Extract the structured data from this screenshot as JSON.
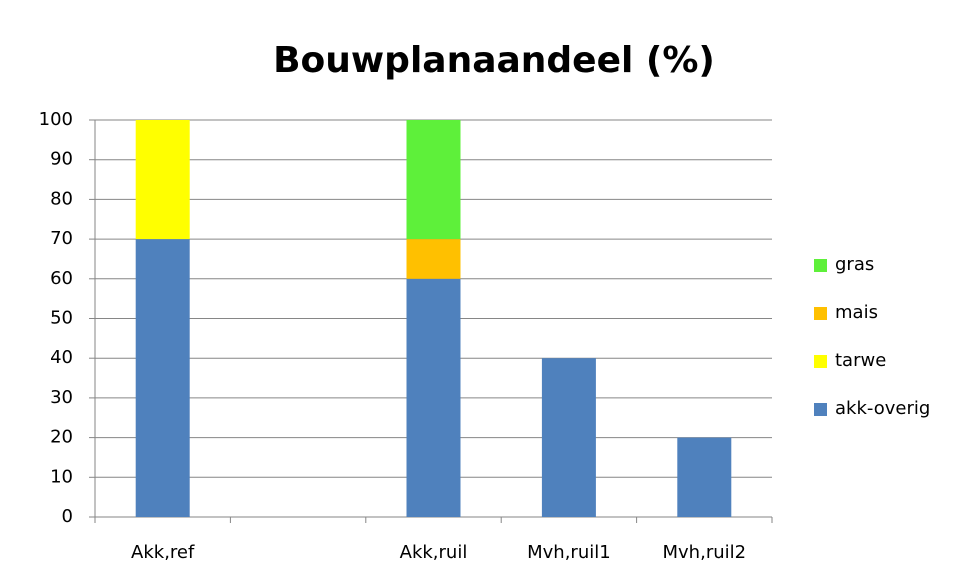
{
  "chart_data": {
    "type": "bar",
    "stacked": true,
    "title": "Bouwplanaandeel (%)",
    "categories": [
      "Akk,ref",
      null,
      "Akk,ruil",
      "Mvh,ruil1",
      "Mvh,ruil2"
    ],
    "series": [
      {
        "name": "akk-overig",
        "color": "#4f81bd",
        "values": [
          70,
          null,
          60,
          40,
          20
        ]
      },
      {
        "name": "tarwe",
        "color": "#ffff00",
        "values": [
          30,
          null,
          null,
          null,
          null
        ]
      },
      {
        "name": "mais",
        "color": "#ffc000",
        "values": [
          null,
          null,
          10,
          null,
          null
        ]
      },
      {
        "name": "gras",
        "color": "#5ef03a",
        "values": [
          null,
          null,
          30,
          null,
          null
        ]
      }
    ],
    "ylim": [
      0,
      100
    ],
    "yticks": [
      0,
      10,
      20,
      30,
      40,
      50,
      60,
      70,
      80,
      90,
      100
    ],
    "grid": true,
    "legend": "right"
  }
}
